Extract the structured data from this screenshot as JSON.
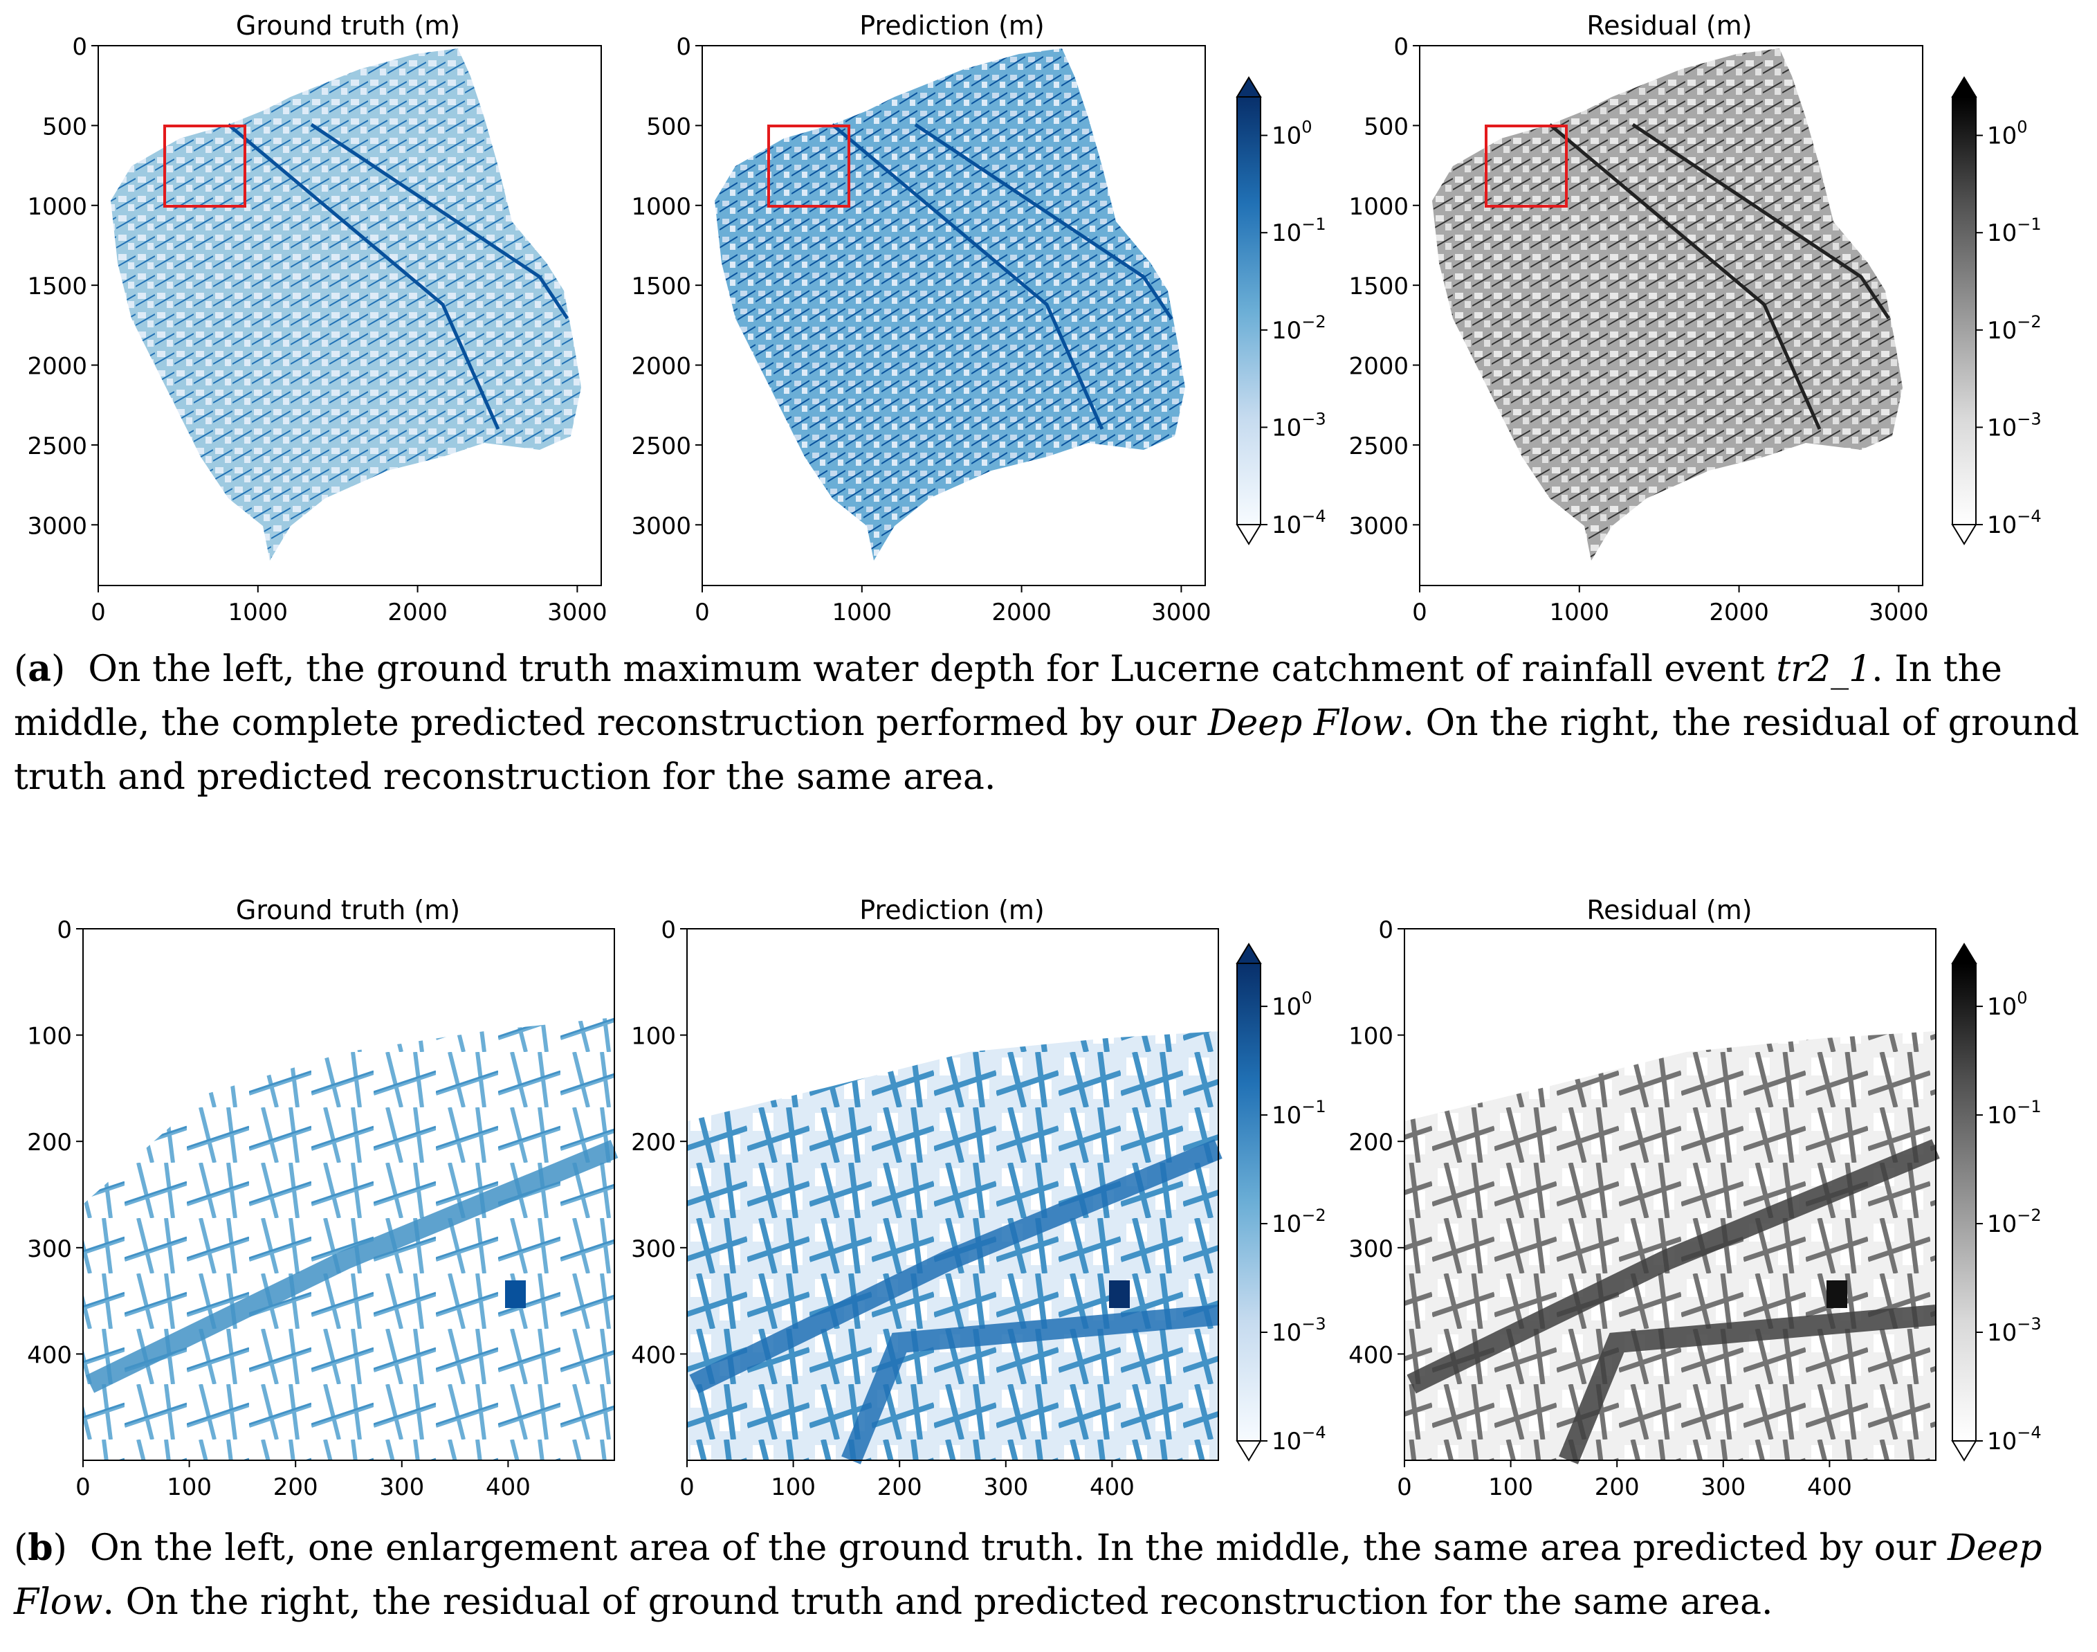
{
  "figure": {
    "panel_a": {
      "plots": [
        {
          "title": "Ground truth (m)",
          "colormap": "blues"
        },
        {
          "title": "Prediction (m)",
          "colormap": "blues"
        },
        {
          "title": "Residual (m)",
          "colormap": "greys"
        }
      ],
      "xticks": [
        "0",
        "1000",
        "2000",
        "3000"
      ],
      "yticks": [
        "0",
        "500",
        "1000",
        "1500",
        "2000",
        "2500",
        "3000"
      ],
      "zoom_box_color": "#e31a1c",
      "colorbar_blue": {
        "ticks": [
          "10",
          "10",
          "10",
          "10",
          "10"
        ],
        "exps": [
          "0",
          "−1",
          "−2",
          "−3",
          "−4"
        ]
      },
      "colorbar_grey": {
        "ticks": [
          "10",
          "10",
          "10",
          "10",
          "10"
        ],
        "exps": [
          "0",
          "−1",
          "−2",
          "−3",
          "−4"
        ]
      }
    },
    "panel_b": {
      "plots": [
        {
          "title": "Ground truth (m)",
          "colormap": "blues"
        },
        {
          "title": "Prediction (m)",
          "colormap": "blues"
        },
        {
          "title": "Residual (m)",
          "colormap": "greys"
        }
      ],
      "xticks": [
        "0",
        "100",
        "200",
        "300",
        "400"
      ],
      "yticks": [
        "0",
        "100",
        "200",
        "300",
        "400"
      ],
      "colorbar_blue": {
        "ticks": [
          "10",
          "10",
          "10",
          "10",
          "10"
        ],
        "exps": [
          "0",
          "−1",
          "−2",
          "−3",
          "−4"
        ]
      },
      "colorbar_grey": {
        "ticks": [
          "10",
          "10",
          "10",
          "10",
          "10"
        ],
        "exps": [
          "0",
          "−1",
          "−2",
          "−3",
          "−4"
        ]
      }
    },
    "colors": {
      "blue_dark": "#08306b",
      "blue_mid": "#4292c6",
      "blue_light": "#c6dbef",
      "grey_dark": "#111111",
      "grey_mid": "#777777",
      "grey_light": "#dddddd"
    }
  },
  "captions": {
    "a": {
      "label": "a",
      "text_1": "On the left, the ground truth maximum water depth for Lucerne catchment of rainfall event ",
      "event": "tr2_1",
      "text_2": ". In the middle, the complete predicted reconstruction performed by our ",
      "model": "Deep Flow",
      "text_3": ". On the right, the residual of ground truth and predicted reconstruction for the same area."
    },
    "b": {
      "label": "b",
      "text_1": "On the left, one enlargement area of the ground truth. In the middle, the same area predicted by our ",
      "model": "Deep Flow",
      "text_2": ". On the right, the residual of ground truth and predicted reconstruction for the same area."
    }
  }
}
